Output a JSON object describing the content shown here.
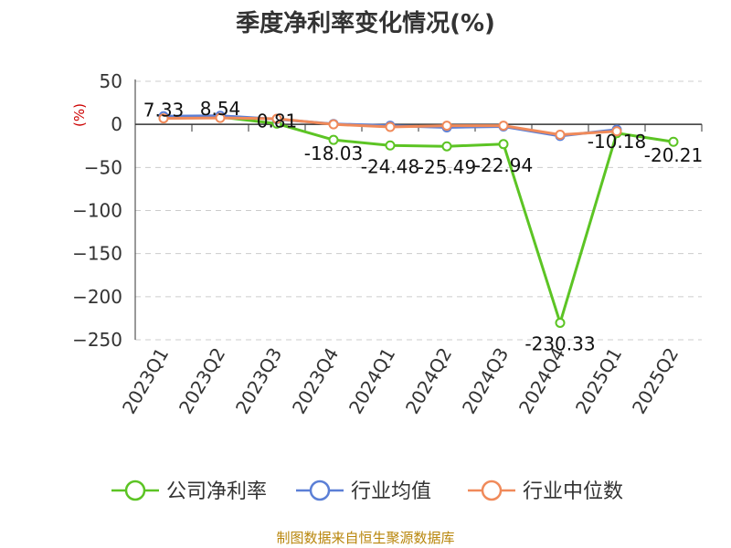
{
  "chart_data": {
    "type": "line",
    "title": "季度净利率变化情况(%)",
    "ylabel": "(%)",
    "ylim": [
      -250,
      50
    ],
    "yticks": [
      50,
      0,
      -50,
      -100,
      -150,
      -200,
      -250
    ],
    "categories": [
      "2023Q1",
      "2023Q2",
      "2023Q3",
      "2023Q4",
      "2024Q1",
      "2024Q2",
      "2024Q3",
      "2024Q4",
      "2025Q1",
      "2025Q2"
    ],
    "grid": true,
    "legend_position": "bottom",
    "series": [
      {
        "name": "公司净利率",
        "color": "#5cc424",
        "values": [
          7.33,
          8.54,
          0.81,
          -18.03,
          -24.48,
          -25.49,
          -22.94,
          -230.33,
          -10.18,
          -20.21
        ],
        "labels": [
          "7.33",
          "8.54",
          "0.81",
          "-18.03",
          "-24.48",
          "-25.49",
          "-22.94",
          "-230.33",
          "-10.18",
          "-20.21"
        ]
      },
      {
        "name": "行业均值",
        "color": "#5b7fd6",
        "values": [
          9.5,
          10.0,
          6.0,
          0.5,
          -1.5,
          -3.5,
          -2.5,
          -13.5,
          -6.0,
          null
        ]
      },
      {
        "name": "行业中位数",
        "color": "#f08a5a",
        "values": [
          7.0,
          7.5,
          6.5,
          0.0,
          -3.0,
          -1.5,
          -1.5,
          -12.0,
          -8.0,
          null
        ]
      }
    ],
    "source": "制图数据来自恒生聚源数据库"
  }
}
